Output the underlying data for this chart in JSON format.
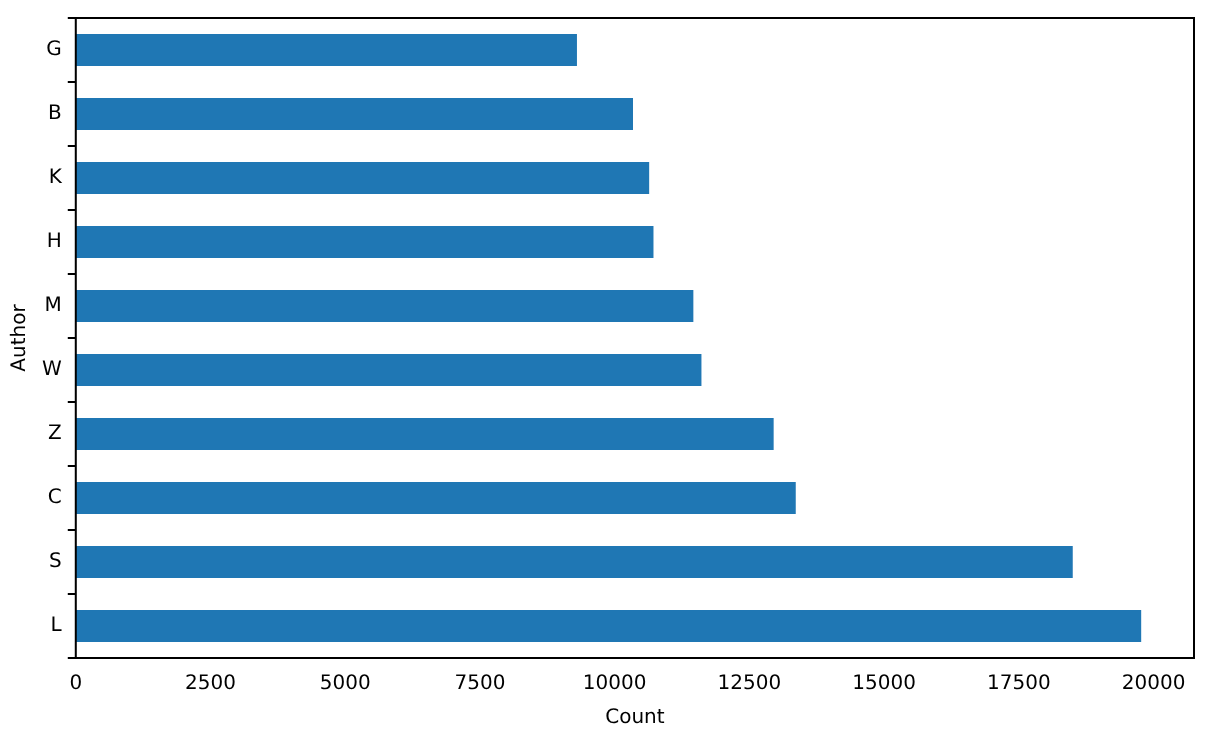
{
  "chart_data": {
    "type": "bar",
    "orientation": "horizontal",
    "xlabel": "Count",
    "ylabel": "Author",
    "categories": [
      "G",
      "B",
      "K",
      "H",
      "M",
      "W",
      "Z",
      "C",
      "S",
      "L"
    ],
    "values": [
      9300,
      10340,
      10640,
      10720,
      11460,
      11610,
      12950,
      13360,
      18500,
      19770
    ],
    "color": "#1f77b4",
    "xlim": [
      0,
      20750
    ],
    "xticks": [
      0,
      2500,
      5000,
      7500,
      10000,
      12500,
      15000,
      17500,
      20000
    ],
    "grid": false,
    "legend": false
  }
}
